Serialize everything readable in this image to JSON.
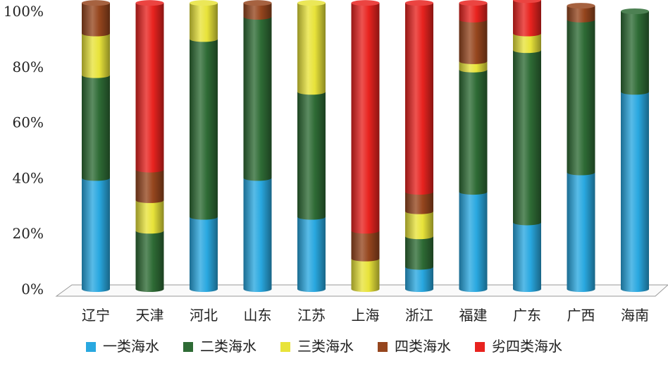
{
  "chart_data": {
    "type": "bar",
    "stacked": true,
    "normalized": true,
    "style": "3d-cylinder",
    "categories": [
      "辽宁",
      "天津",
      "河北",
      "山东",
      "江苏",
      "上海",
      "浙江",
      "福建",
      "广东",
      "广西",
      "海南"
    ],
    "series": [
      {
        "name": "一类海水",
        "color": "#29a8e0",
        "values": [
          40,
          0,
          26,
          40,
          26,
          0,
          8,
          35,
          24,
          42,
          71
        ]
      },
      {
        "name": "二类海水",
        "color": "#2e6b35",
        "values": [
          37,
          21,
          64,
          58,
          45,
          0,
          11,
          44,
          62,
          55,
          29
        ]
      },
      {
        "name": "三类海水",
        "color": "#e8e33a",
        "values": [
          15,
          11,
          13,
          0,
          32,
          11,
          9,
          3,
          6,
          0,
          0
        ]
      },
      {
        "name": "四类海水",
        "color": "#96461e",
        "values": [
          11,
          11,
          0,
          5,
          0,
          10,
          7,
          15,
          0,
          5,
          0
        ]
      },
      {
        "name": "劣四类海水",
        "color": "#e8231f",
        "values": [
          0,
          60,
          0,
          0,
          0,
          82,
          68,
          6,
          12,
          0,
          0
        ]
      }
    ],
    "ylim": [
      0,
      100
    ],
    "yticks": [
      "0%",
      "20%",
      "40%",
      "60%",
      "80%",
      "100%"
    ],
    "grid": false,
    "legend": "bottom",
    "title": "",
    "xlabel": "",
    "ylabel": ""
  }
}
